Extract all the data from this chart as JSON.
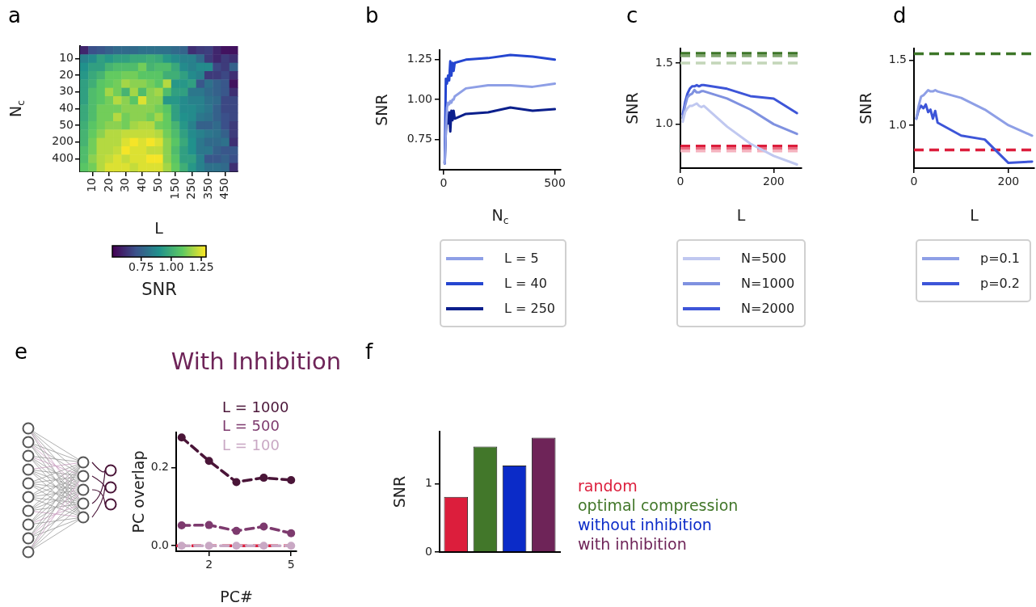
{
  "chart_data": [
    {
      "type": "heatmap",
      "xlabel": "L",
      "ylabel": "N$_{c}$",
      "clabel": "SNR",
      "annotations": [
        "a"
      ],
      "categories": [
        null,
        "10",
        null,
        "20",
        null,
        "30",
        null,
        "40",
        null,
        "50",
        null,
        "150",
        null,
        "250",
        null,
        "350",
        null,
        "450",
        null
      ],
      "y_categories": [
        null,
        "10",
        null,
        "20",
        null,
        "30",
        null,
        "40",
        null,
        "50",
        null,
        "200",
        null,
        "400",
        null
      ],
      "clim": [
        0.51,
        1.29
      ],
      "cticks": [
        0.75,
        {
          "value": 1,
          "label": "1.00"
        },
        1.25
      ],
      "cells": [
        [
          0.6,
          0.7,
          0.72,
          0.75,
          0.78,
          0.78,
          0.78,
          0.8,
          0.8,
          0.8,
          0.8,
          0.78,
          0.76,
          0.62,
          0.65,
          0.66,
          0.6,
          0.55,
          0.55
        ],
        [
          0.85,
          0.88,
          0.95,
          0.92,
          0.95,
          0.95,
          0.98,
          0.98,
          1.0,
          0.98,
          0.92,
          0.88,
          0.85,
          0.85,
          0.78,
          0.65,
          0.6,
          0.65,
          0.62
        ],
        [
          0.9,
          0.95,
          0.95,
          1.02,
          1.05,
          1.05,
          1.05,
          1.12,
          1.02,
          1.05,
          1.05,
          0.98,
          0.88,
          0.85,
          0.88,
          0.88,
          0.68,
          0.65,
          0.75
        ],
        [
          0.92,
          0.98,
          1.02,
          1.1,
          1.1,
          1.12,
          1.12,
          1.08,
          1.08,
          1.08,
          1.0,
          1.0,
          0.95,
          0.88,
          0.85,
          0.65,
          0.65,
          0.68,
          0.62
        ],
        [
          0.95,
          1.0,
          1.08,
          1.1,
          1.12,
          1.18,
          1.15,
          1.15,
          1.12,
          1.08,
          1.2,
          0.92,
          0.92,
          0.95,
          0.72,
          0.8,
          0.75,
          0.72,
          0.55
        ],
        [
          0.95,
          1.05,
          1.08,
          1.18,
          1.12,
          1.02,
          1.18,
          1.05,
          1.15,
          1.18,
          1.05,
          0.95,
          0.95,
          0.82,
          0.82,
          0.78,
          0.75,
          0.72,
          0.62
        ],
        [
          0.95,
          1.05,
          1.08,
          1.12,
          1.2,
          1.15,
          1.08,
          1.25,
          1.15,
          1.15,
          0.92,
          0.92,
          0.88,
          0.85,
          0.85,
          0.8,
          0.78,
          0.68,
          0.68
        ],
        [
          0.98,
          1.05,
          1.12,
          1.12,
          1.12,
          1.15,
          1.15,
          1.15,
          1.15,
          1.12,
          1.08,
          0.95,
          0.88,
          0.88,
          0.85,
          0.82,
          0.75,
          0.68,
          0.68
        ],
        [
          0.98,
          1.05,
          1.12,
          1.12,
          1.2,
          1.12,
          1.15,
          1.15,
          1.12,
          1.18,
          1.1,
          0.95,
          0.9,
          0.88,
          0.82,
          0.8,
          0.75,
          0.7,
          0.68
        ],
        [
          1.0,
          1.08,
          1.12,
          1.15,
          1.15,
          1.12,
          1.18,
          1.2,
          1.2,
          1.12,
          1.1,
          1.02,
          0.92,
          0.85,
          0.75,
          0.75,
          0.78,
          0.7,
          0.65
        ],
        [
          1.02,
          1.1,
          1.15,
          1.2,
          1.2,
          1.22,
          1.22,
          1.22,
          1.22,
          1.2,
          1.12,
          1.05,
          0.95,
          0.88,
          0.85,
          0.82,
          0.8,
          0.75,
          0.65
        ],
        [
          1.02,
          1.12,
          1.2,
          1.2,
          1.2,
          1.25,
          1.28,
          1.25,
          1.28,
          1.25,
          1.15,
          1.08,
          0.98,
          0.9,
          0.82,
          0.78,
          0.78,
          0.8,
          0.62
        ],
        [
          1.05,
          1.12,
          1.2,
          1.2,
          1.22,
          1.28,
          1.25,
          1.25,
          1.22,
          1.22,
          1.15,
          1.05,
          0.95,
          0.9,
          0.82,
          0.82,
          0.75,
          0.72,
          0.72
        ],
        [
          1.05,
          1.15,
          1.2,
          1.22,
          1.25,
          1.22,
          1.25,
          1.25,
          1.28,
          1.28,
          1.15,
          1.08,
          0.95,
          0.95,
          0.85,
          0.72,
          0.72,
          0.75,
          0.7
        ],
        [
          1.08,
          1.12,
          1.2,
          1.25,
          1.25,
          1.25,
          1.22,
          1.25,
          1.25,
          1.25,
          1.18,
          1.1,
          1.0,
          0.92,
          0.85,
          0.8,
          0.8,
          0.78,
          0.62
        ]
      ]
    },
    {
      "type": "line",
      "xlabel": "N$_{c}$",
      "ylabel": "SNR",
      "annotations": [
        "b"
      ],
      "legend": "bottom",
      "x": [
        5,
        10,
        15,
        20,
        25,
        30,
        35,
        40,
        45,
        50,
        100,
        200,
        300,
        400,
        500
      ],
      "xlim": [
        -18,
        527
      ],
      "xticks": [
        0,
        500
      ],
      "ylim": [
        0.56,
        1.31
      ],
      "yticks": [
        {
          "value": 0.75,
          "label": "0.75"
        },
        {
          "value": 1,
          "label": "1.00"
        },
        {
          "value": 1.25,
          "label": "1.25"
        }
      ],
      "series": [
        {
          "name": "L = 5",
          "color": "#8e9fe6",
          "values": [
            0.6,
            0.8,
            0.95,
            0.98,
            0.97,
            0.99,
            0.98,
            1.0,
            1.0,
            1.02,
            1.07,
            1.09,
            1.09,
            1.08,
            1.1
          ]
        },
        {
          "name": "L = 40",
          "color": "#2546d0",
          "values": [
            0.6,
            1.13,
            1.1,
            1.15,
            1.12,
            1.24,
            1.15,
            1.23,
            1.18,
            1.23,
            1.25,
            1.26,
            1.28,
            1.27,
            1.25
          ]
        },
        {
          "name": "L = 250",
          "color": "#0b1f8c",
          "values": [
            0.6,
            0.8,
            0.88,
            0.85,
            0.92,
            0.8,
            0.93,
            0.87,
            0.93,
            0.88,
            0.91,
            0.92,
            0.95,
            0.93,
            0.94
          ]
        }
      ]
    },
    {
      "type": "line",
      "xlabel": "L",
      "ylabel": "SNR",
      "annotations": [
        "c"
      ],
      "legend": "bottom",
      "x": [
        5,
        10,
        15,
        20,
        25,
        30,
        35,
        40,
        45,
        50,
        100,
        150,
        200,
        250
      ],
      "xlim": [
        0,
        260
      ],
      "xticks": [
        0,
        200
      ],
      "ylim": [
        0.64,
        1.62
      ],
      "yticks": [
        {
          "value": 1,
          "label": "1.0"
        },
        1.5
      ],
      "ref_lines": [
        {
          "axis": "y",
          "value": 1.58,
          "color": "#3d7628",
          "line_style": "dashed"
        },
        {
          "axis": "y",
          "value": 1.56,
          "color": "#7ea36c",
          "line_style": "dashed"
        },
        {
          "axis": "y",
          "value": 1.5,
          "color": "#c3d6b9",
          "line_style": "dashed"
        },
        {
          "axis": "y",
          "value": 0.82,
          "color": "#dc1e3c",
          "line_style": "dashed"
        },
        {
          "axis": "y",
          "value": 0.8,
          "color": "#ea6b80",
          "line_style": "dashed"
        },
        {
          "axis": "y",
          "value": 0.78,
          "color": "#f5b3bf",
          "line_style": "dashed"
        }
      ],
      "series": [
        {
          "name": "N=500",
          "color": "#c0c8f0",
          "values": [
            1.02,
            1.1,
            1.13,
            1.15,
            1.15,
            1.16,
            1.17,
            1.15,
            1.14,
            1.15,
            0.98,
            0.84,
            0.74,
            0.67
          ]
        },
        {
          "name": "N=1000",
          "color": "#7f91e0",
          "values": [
            1.05,
            1.15,
            1.22,
            1.24,
            1.25,
            1.28,
            1.26,
            1.26,
            1.27,
            1.27,
            1.21,
            1.12,
            1.0,
            0.92
          ]
        },
        {
          "name": "N=2000",
          "color": "#3d55d8",
          "values": [
            1.08,
            1.18,
            1.25,
            1.29,
            1.31,
            1.31,
            1.32,
            1.31,
            1.32,
            1.32,
            1.29,
            1.23,
            1.21,
            1.09
          ]
        }
      ]
    },
    {
      "type": "line",
      "xlabel": "L",
      "ylabel": "SNR",
      "annotations": [
        "d"
      ],
      "legend": "bottom",
      "x": [
        5,
        10,
        15,
        20,
        25,
        30,
        35,
        40,
        45,
        50,
        100,
        150,
        200,
        250
      ],
      "xlim": [
        0,
        255
      ],
      "xticks": [
        0,
        200
      ],
      "ylim": [
        0.67,
        1.59
      ],
      "yticks": [
        {
          "value": 1,
          "label": "1.0"
        },
        1.5
      ],
      "ref_lines": [
        {
          "axis": "y",
          "value": 1.55,
          "color": "#3d7628",
          "line_style": "dashed"
        },
        {
          "axis": "y",
          "value": 0.81,
          "color": "#dc1e3c",
          "line_style": "dashed"
        }
      ],
      "series": [
        {
          "name": "p=0.1",
          "color": "#8e9fe6",
          "values": [
            1.05,
            1.15,
            1.22,
            1.23,
            1.25,
            1.27,
            1.26,
            1.26,
            1.27,
            1.26,
            1.21,
            1.12,
            1.0,
            0.92
          ]
        },
        {
          "name": "p=0.2",
          "color": "#3d55d8",
          "values": [
            1.05,
            1.12,
            1.15,
            1.13,
            1.16,
            1.1,
            1.12,
            1.05,
            1.11,
            1.02,
            0.92,
            0.89,
            0.71,
            0.72
          ]
        }
      ]
    },
    {
      "type": "line",
      "title": "With Inhibition",
      "xlabel": "PC#",
      "ylabel": "PC overlap",
      "annotations": [
        "e"
      ],
      "legend": "top right",
      "marker": "circle",
      "line_style": "dashed",
      "x": [
        1,
        2,
        3,
        4,
        5
      ],
      "xlim": [
        0.8,
        5.2
      ],
      "xticks": [
        2,
        5
      ],
      "ylim": [
        -0.014,
        0.29
      ],
      "yticks": [
        {
          "value": 0,
          "label": "0.0"
        },
        0.2
      ],
      "ref_lines": [
        {
          "axis": "y",
          "value": 0,
          "color": "#dc1e3c",
          "line_style": "dashed"
        }
      ],
      "series": [
        {
          "name": "L = 1000",
          "color": "#4a1538",
          "values": [
            0.277,
            0.217,
            0.163,
            0.174,
            0.168
          ]
        },
        {
          "name": "L = 500",
          "color": "#7d3a6e",
          "values": [
            0.052,
            0.053,
            0.038,
            0.049,
            0.032
          ]
        },
        {
          "name": "L = 100",
          "color": "#c9a8c4",
          "values": [
            0,
            0,
            0,
            0,
            0
          ]
        }
      ]
    },
    {
      "type": "bar",
      "ylabel": "SNR",
      "annotations": [
        "f"
      ],
      "legend": "right",
      "categories": [
        null
      ],
      "ylim": [
        0,
        1.77
      ],
      "yticks": [
        0,
        1
      ],
      "series": [
        {
          "name": "random",
          "color": "#dc1e3c",
          "values": [
            0.81
          ]
        },
        {
          "name": "optimal compression",
          "color": "#42772a",
          "values": [
            1.55
          ]
        },
        {
          "name": "without inhibition",
          "color": "#0b2bc8",
          "values": [
            1.27
          ]
        },
        {
          "name": "with inhibition",
          "color": "#6e2458",
          "values": [
            1.68
          ]
        }
      ]
    }
  ]
}
